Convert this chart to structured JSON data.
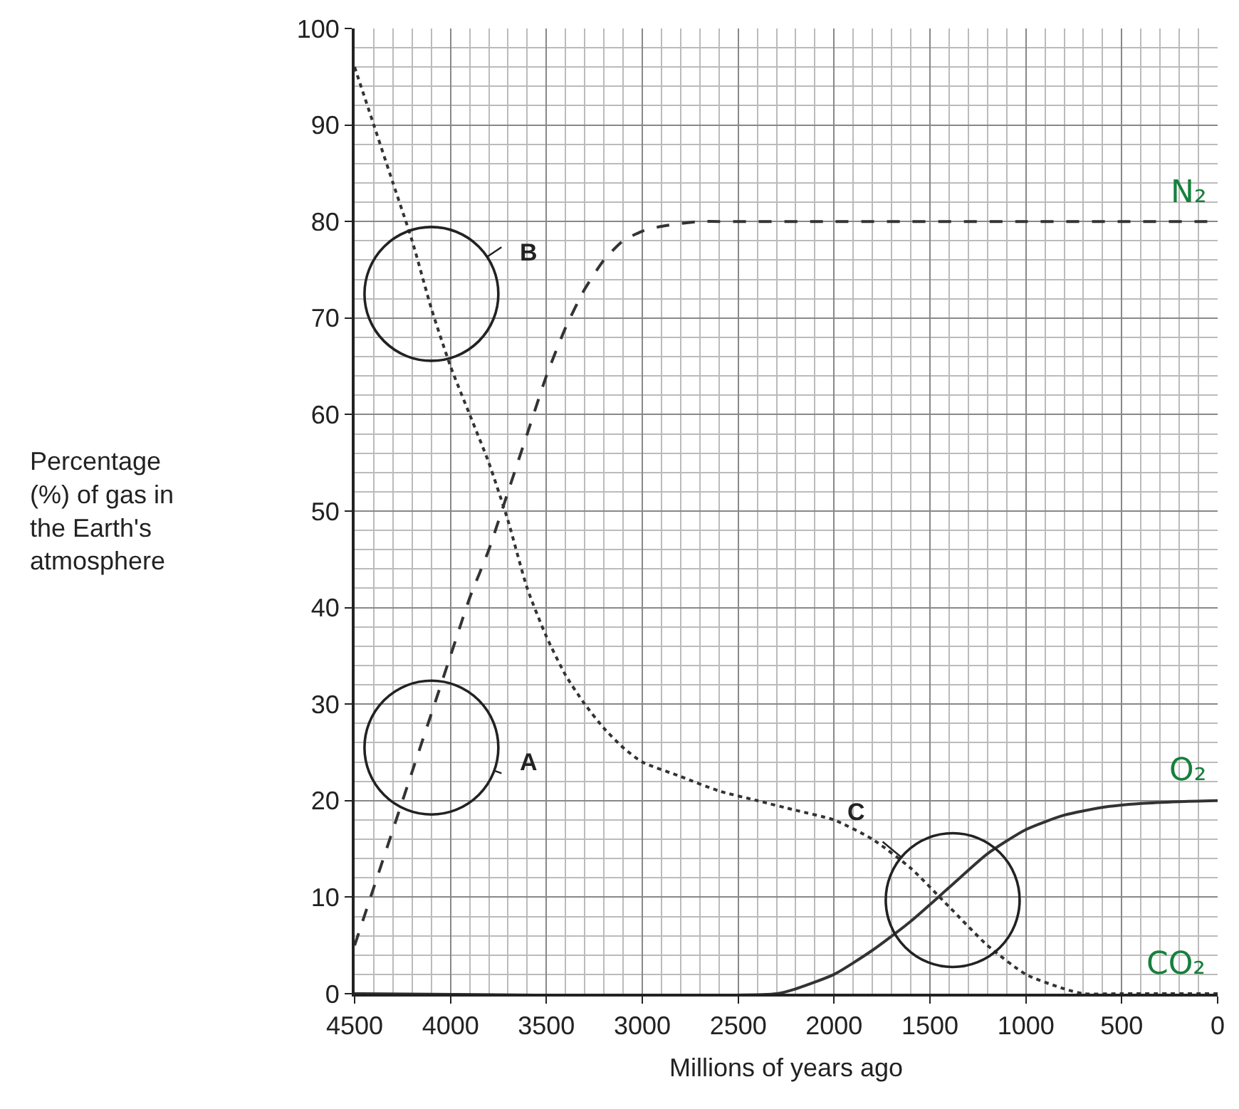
{
  "chart_data": {
    "type": "line",
    "xlabel": "Millions of years ago",
    "ylabel": "Percentage\n(%) of gas in\nthe Earth's\natmosphere",
    "xlim": [
      4500,
      0
    ],
    "xticks": [
      4500,
      4000,
      3500,
      3000,
      2500,
      2000,
      1500,
      1000,
      500,
      0
    ],
    "ylim": [
      0,
      100
    ],
    "yticks": [
      0,
      10,
      20,
      30,
      40,
      50,
      60,
      70,
      80,
      90,
      100
    ],
    "grid": true,
    "legend": false,
    "marker": "none",
    "series": [
      {
        "name": "CO₂",
        "color": "#333333",
        "line_style": "dotted",
        "x": [
          4500,
          4400,
          4300,
          4200,
          4100,
          4000,
          3900,
          3800,
          3700,
          3600,
          3500,
          3400,
          3300,
          3200,
          3100,
          3000,
          2800,
          2600,
          2400,
          2200,
          2000,
          1800,
          1600,
          1400,
          1200,
          1000,
          800,
          700,
          500,
          0
        ],
        "values": [
          96,
          90,
          84,
          78,
          71,
          65,
          60,
          55,
          49,
          42,
          37,
          33,
          30,
          27.5,
          25.5,
          24,
          22.5,
          21,
          20,
          19,
          18,
          16,
          13,
          9,
          5,
          2,
          0.5,
          0,
          0,
          0
        ]
      },
      {
        "name": "N₂",
        "color": "#333333",
        "line_style": "dashed",
        "x": [
          4500,
          4400,
          4300,
          4200,
          4100,
          4000,
          3900,
          3800,
          3700,
          3600,
          3500,
          3400,
          3300,
          3200,
          3100,
          3000,
          2900,
          2800,
          2700,
          2600,
          2000,
          1000,
          0
        ],
        "values": [
          5,
          11,
          17,
          23,
          29,
          35,
          41,
          46,
          52,
          58,
          64,
          69,
          73,
          76,
          78,
          79,
          79.5,
          79.8,
          80,
          80,
          80,
          80,
          80
        ]
      },
      {
        "name": "O₂",
        "color": "#333333",
        "line_style": "solid",
        "x": [
          4500,
          2300,
          2200,
          2000,
          1800,
          1600,
          1400,
          1200,
          1000,
          800,
          600,
          400,
          200,
          0
        ],
        "values": [
          0,
          0,
          0.5,
          2,
          4.5,
          7.5,
          11,
          14.5,
          17,
          18.5,
          19.3,
          19.7,
          19.9,
          20
        ]
      }
    ],
    "annotations": [
      "A",
      "B",
      "C"
    ]
  }
}
